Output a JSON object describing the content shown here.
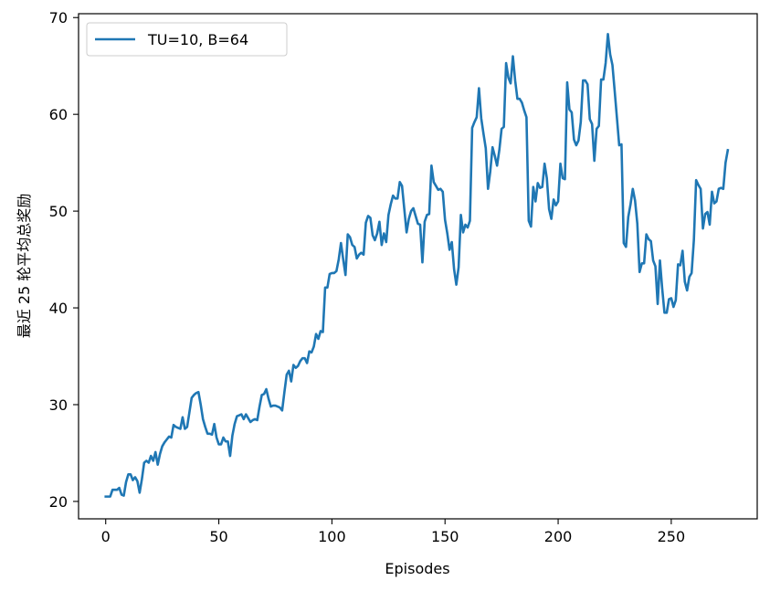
{
  "chart_data": {
    "type": "line",
    "xlabel": "Episodes",
    "ylabel": "最近 25 轮平均总奖励",
    "xlim": [
      -12,
      288
    ],
    "ylim": [
      18.2,
      70.4
    ],
    "xticks": [
      0,
      50,
      100,
      150,
      200,
      250
    ],
    "yticks": [
      20,
      30,
      40,
      50,
      60,
      70
    ],
    "grid": false,
    "legend_position": "top-left",
    "colors": {
      "line": "#1f77b4",
      "axes": "#000000"
    },
    "series": [
      {
        "name": "TU=10, B=64",
        "x": [
          0,
          1,
          2,
          3,
          4,
          5,
          6,
          7,
          8,
          9,
          10,
          11,
          12,
          13,
          14,
          15,
          16,
          17,
          18,
          19,
          20,
          21,
          22,
          23,
          24,
          25,
          26,
          27,
          28,
          29,
          30,
          31,
          32,
          33,
          34,
          35,
          36,
          37,
          38,
          39,
          40,
          41,
          42,
          43,
          44,
          45,
          46,
          47,
          48,
          49,
          50,
          51,
          52,
          53,
          54,
          55,
          56,
          57,
          58,
          59,
          60,
          61,
          62,
          63,
          64,
          65,
          66,
          67,
          68,
          69,
          70,
          71,
          72,
          73,
          74,
          75,
          76,
          77,
          78,
          79,
          80,
          81,
          82,
          83,
          84,
          85,
          86,
          87,
          88,
          89,
          90,
          91,
          92,
          93,
          94,
          95,
          96,
          97,
          98,
          99,
          100,
          101,
          102,
          103,
          104,
          105,
          106,
          107,
          108,
          109,
          110,
          111,
          112,
          113,
          114,
          115,
          116,
          117,
          118,
          119,
          120,
          121,
          122,
          123,
          124,
          125,
          126,
          127,
          128,
          129,
          130,
          131,
          132,
          133,
          134,
          135,
          136,
          137,
          138,
          139,
          140,
          141,
          142,
          143,
          144,
          145,
          146,
          147,
          148,
          149,
          150,
          151,
          152,
          153,
          154,
          155,
          156,
          157,
          158,
          159,
          160,
          161,
          162,
          163,
          164,
          165,
          166,
          167,
          168,
          169,
          170,
          171,
          172,
          173,
          174,
          175,
          176,
          177,
          178,
          179,
          180,
          181,
          182,
          183,
          184,
          185,
          186,
          187,
          188,
          189,
          190,
          191,
          192,
          193,
          194,
          195,
          196,
          197,
          198,
          199,
          200,
          201,
          202,
          203,
          204,
          205,
          206,
          207,
          208,
          209,
          210,
          211,
          212,
          213,
          214,
          215,
          216,
          217,
          218,
          219,
          220,
          221,
          222,
          223,
          224,
          225,
          226,
          227,
          228,
          229,
          230,
          231,
          232,
          233,
          234,
          235,
          236,
          237,
          238,
          239,
          240,
          241,
          242,
          243,
          244,
          245,
          246,
          247,
          248,
          249,
          250,
          251,
          252,
          253,
          254,
          255,
          256,
          257,
          258,
          259,
          260,
          261,
          262,
          263,
          264,
          265,
          266,
          267,
          268,
          269,
          270,
          271,
          272,
          273,
          274,
          275
        ],
        "y": [
          20.5,
          20.5,
          20.5,
          21.2,
          21.2,
          21.2,
          21.4,
          20.7,
          20.6,
          22.0,
          22.8,
          22.8,
          22.2,
          22.5,
          22.1,
          20.9,
          22.3,
          24.0,
          24.2,
          24.0,
          24.7,
          24.2,
          25.1,
          23.8,
          24.9,
          25.7,
          26.1,
          26.4,
          26.7,
          26.6,
          27.9,
          27.7,
          27.6,
          27.5,
          28.7,
          27.5,
          27.7,
          29.2,
          30.7,
          31.0,
          31.2,
          31.3,
          30.0,
          28.5,
          27.7,
          27.0,
          27.0,
          26.9,
          28.0,
          26.6,
          25.9,
          25.9,
          26.6,
          26.2,
          26.2,
          24.7,
          26.8,
          28.0,
          28.8,
          28.9,
          29.0,
          28.5,
          29.0,
          28.6,
          28.2,
          28.4,
          28.5,
          28.4,
          29.8,
          31.0,
          31.1,
          31.6,
          30.6,
          29.8,
          29.9,
          29.9,
          29.8,
          29.7,
          29.4,
          31.3,
          33.1,
          33.5,
          32.4,
          34.1,
          33.8,
          34.0,
          34.5,
          34.8,
          34.8,
          34.3,
          35.5,
          35.4,
          36.0,
          37.3,
          36.8,
          37.6,
          37.5,
          42.1,
          42.1,
          43.5,
          43.6,
          43.6,
          43.8,
          45.0,
          46.7,
          45.0,
          43.4,
          47.6,
          47.3,
          46.5,
          46.3,
          45.1,
          45.5,
          45.7,
          45.5,
          48.8,
          49.5,
          49.3,
          47.5,
          47.0,
          47.7,
          48.9,
          46.5,
          47.7,
          46.8,
          49.6,
          50.7,
          51.6,
          51.3,
          51.3,
          53.0,
          52.6,
          50.2,
          47.8,
          49.2,
          50.0,
          50.3,
          49.5,
          48.7,
          48.6,
          44.7,
          48.9,
          49.6,
          49.7,
          54.7,
          53.0,
          52.6,
          52.2,
          52.3,
          52.0,
          49.1,
          47.7,
          46.0,
          46.8,
          44.0,
          42.4,
          44.2,
          49.6,
          47.8,
          48.6,
          48.3,
          49.0,
          58.6,
          59.2,
          59.7,
          62.7,
          59.6,
          58.0,
          56.5,
          52.3,
          54.1,
          56.6,
          55.7,
          54.7,
          56.3,
          58.5,
          58.7,
          65.3,
          63.8,
          63.2,
          66.0,
          63.5,
          61.6,
          61.6,
          61.2,
          60.4,
          59.7,
          49.0,
          48.4,
          52.5,
          51.0,
          52.9,
          52.4,
          52.5,
          54.9,
          53.4,
          50.2,
          49.2,
          51.2,
          50.6,
          51.0,
          54.9,
          53.4,
          53.3,
          63.3,
          60.5,
          60.2,
          57.4,
          56.8,
          57.3,
          59.2,
          63.5,
          63.5,
          63.1,
          59.5,
          59.0,
          55.2,
          58.5,
          58.8,
          63.6,
          63.6,
          65.3,
          68.3,
          66.2,
          65.1,
          62.4,
          59.6,
          56.8,
          56.9,
          46.7,
          46.3,
          49.4,
          50.7,
          52.3,
          51.1,
          48.7,
          43.7,
          44.6,
          44.6,
          47.6,
          47.1,
          46.9,
          44.9,
          44.3,
          40.4,
          44.9,
          42.0,
          39.5,
          39.5,
          40.9,
          41.0,
          40.1,
          40.8,
          44.5,
          44.4,
          45.9,
          42.7,
          41.8,
          43.2,
          43.6,
          47.0,
          53.2,
          52.7,
          52.3,
          48.2,
          49.7,
          49.9,
          48.6,
          52.0,
          50.8,
          51.0,
          52.3,
          52.4,
          52.3,
          55.0,
          56.3
        ]
      }
    ]
  }
}
